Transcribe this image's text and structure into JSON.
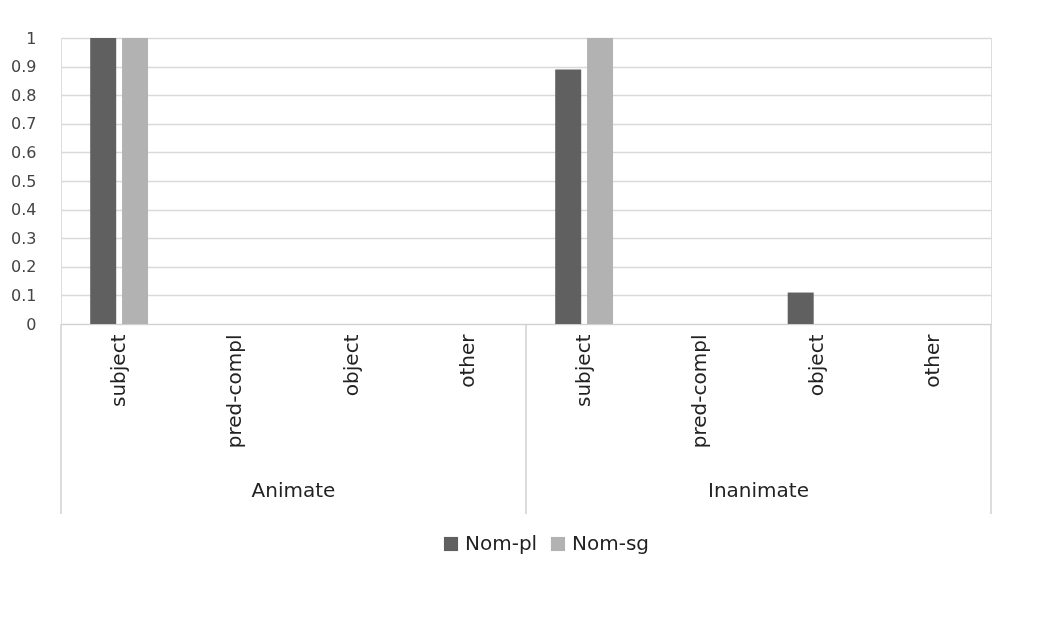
{
  "chart_data": {
    "type": "bar",
    "categories": [
      "subject",
      "pred-compl",
      "object",
      "other",
      "subject",
      "pred-compl",
      "object",
      "other"
    ],
    "series": [
      {
        "name": "Nom-pl",
        "color": "#606060",
        "values": [
          1,
          0,
          0,
          0,
          0.89,
          0,
          0.11,
          0
        ]
      },
      {
        "name": "Nom-sg",
        "color": "#b2b2b2",
        "values": [
          1,
          0,
          0,
          0,
          1,
          0,
          0,
          0
        ]
      }
    ],
    "annotations": [
      "Animate",
      "Inanimate"
    ],
    "ylim": [
      0,
      1
    ],
    "yticks": [
      0,
      0.1,
      0.2,
      0.3,
      0.4,
      0.5,
      0.6,
      0.7,
      0.8,
      0.9,
      1
    ],
    "grid": "y",
    "legend": "bottom"
  }
}
